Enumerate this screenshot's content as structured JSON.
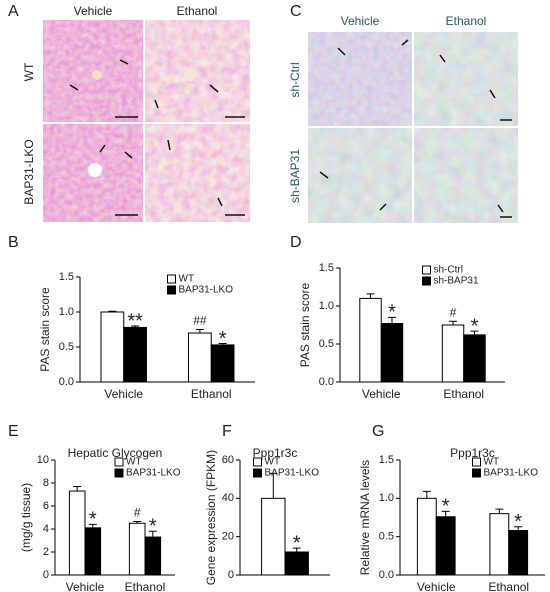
{
  "panel_labels": [
    "A",
    "B",
    "C",
    "D",
    "E",
    "F",
    "G"
  ],
  "image_panels": [
    {
      "columns": [
        "Vehicle",
        "Ethanol"
      ],
      "rows": [
        "WT",
        "BAP31-LKO"
      ]
    },
    {
      "columns": [
        "Vehicle",
        "Ethanol"
      ],
      "rows": [
        "sh-Ctrl",
        "sh-BAP31"
      ]
    }
  ],
  "chart_data": [
    {
      "type": "bar",
      "y_label": "PAS stain score",
      "categories": [
        "Vehicle",
        "Ethanol"
      ],
      "ylim": [
        0,
        1.5
      ],
      "yticks": [
        {
          "value": 0,
          "label": "0.0"
        },
        0.5,
        {
          "value": 1,
          "label": "1.0"
        },
        1.5
      ],
      "legend": "upper right",
      "series": [
        {
          "name": "WT",
          "color": "#ffffff",
          "values": [
            1.0,
            0.7
          ],
          "errors": [
            0.01,
            0.05
          ],
          "annotations": [
            null,
            "##"
          ]
        },
        {
          "name": "BAP31-LKO",
          "color": "#000000",
          "values": [
            0.78,
            0.53
          ],
          "errors": [
            0.02,
            0.02
          ],
          "annotations": [
            "**",
            "*"
          ]
        }
      ]
    },
    {
      "type": "bar",
      "y_label": "PAS stain score",
      "categories": [
        "Vehicle",
        "Ethanol"
      ],
      "ylim": [
        0,
        1.5
      ],
      "yticks": [
        {
          "value": 0,
          "label": "0.0"
        },
        0.5,
        {
          "value": 1,
          "label": "1.0"
        },
        1.5
      ],
      "legend": "upper right",
      "series": [
        {
          "name": "sh-Ctrl",
          "color": "#ffffff",
          "values": [
            1.1,
            0.75
          ],
          "errors": [
            0.06,
            0.05
          ],
          "annotations": [
            null,
            "#"
          ]
        },
        {
          "name": "sh-BAP31",
          "color": "#000000",
          "values": [
            0.77,
            0.62
          ],
          "errors": [
            0.08,
            0.05
          ],
          "annotations": [
            "*",
            "*"
          ]
        }
      ]
    },
    {
      "type": "bar",
      "title": "Hepatic Glycogen",
      "y_label": "(mg/g tissue)",
      "categories": [
        "Vehicle",
        "Ethanol"
      ],
      "ylim": [
        0,
        10
      ],
      "yticks": [
        0,
        2,
        4,
        6,
        8,
        10
      ],
      "legend": "upper right",
      "series": [
        {
          "name": "WT",
          "color": "#ffffff",
          "values": [
            7.3,
            4.5
          ],
          "errors": [
            0.4,
            0.15
          ],
          "annotations": [
            null,
            "#"
          ]
        },
        {
          "name": "BAP31-LKO",
          "color": "#000000",
          "values": [
            4.1,
            3.3
          ],
          "errors": [
            0.3,
            0.5
          ],
          "annotations": [
            "*",
            "*"
          ]
        }
      ]
    },
    {
      "type": "bar",
      "title": "Ppp1r3c",
      "y_label": "Gene expression (FPKM)",
      "categories": [
        null
      ],
      "ylim": [
        0,
        60
      ],
      "yticks": [
        0,
        20,
        40,
        60
      ],
      "legend": "upper right",
      "series": [
        {
          "name": "WT",
          "color": "#ffffff",
          "values": [
            40
          ],
          "errors": [
            13
          ],
          "annotations": [
            null
          ]
        },
        {
          "name": "BAP31-LKO",
          "color": "#000000",
          "values": [
            12
          ],
          "errors": [
            2
          ],
          "annotations": [
            "*"
          ]
        }
      ]
    },
    {
      "type": "bar",
      "title": "Ppp1r3c",
      "y_label": "Relative mRNA levels",
      "categories": [
        "Vehicle",
        "Ethanol"
      ],
      "ylim": [
        0,
        1.5
      ],
      "yticks": [
        {
          "value": 0,
          "label": "0.0"
        },
        0.5,
        {
          "value": 1,
          "label": "1.0"
        },
        1.5
      ],
      "legend": "upper right",
      "series": [
        {
          "name": "WT",
          "color": "#ffffff",
          "values": [
            1.0,
            0.8
          ],
          "errors": [
            0.09,
            0.06
          ],
          "annotations": [
            null,
            null
          ]
        },
        {
          "name": "BAP31-LKO",
          "color": "#000000",
          "values": [
            0.76,
            0.58
          ],
          "errors": [
            0.07,
            0.05
          ],
          "annotations": [
            "*",
            "*"
          ]
        }
      ]
    }
  ]
}
